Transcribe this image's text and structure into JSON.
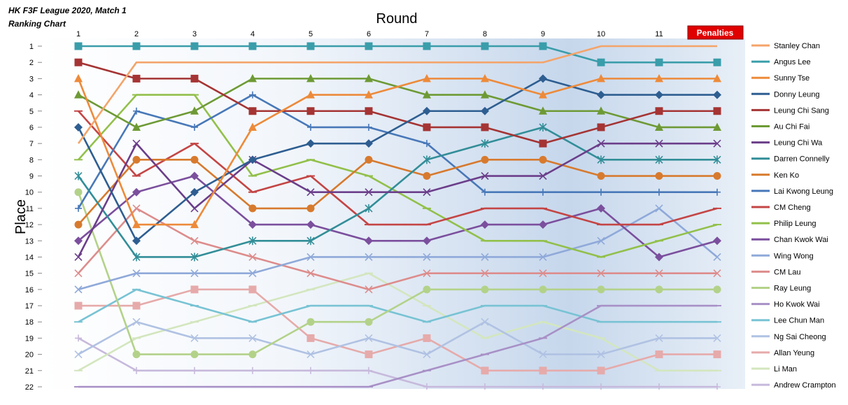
{
  "chart_data": {
    "type": "line",
    "title": "HK F3F League 2020, Match 1",
    "subtitle": "Ranking Chart",
    "xlabel": "Round",
    "ylabel": "Place",
    "x": [
      1,
      2,
      3,
      4,
      5,
      6,
      7,
      8,
      9,
      10,
      11,
      12
    ],
    "x_tick_labels": [
      "1",
      "2",
      "3",
      "4",
      "5",
      "6",
      "7",
      "8",
      "9",
      "10",
      "11",
      ""
    ],
    "ylim": [
      1,
      22
    ],
    "y_inverted": true,
    "y_ticks": [
      1,
      2,
      3,
      4,
      5,
      6,
      7,
      8,
      9,
      10,
      11,
      12,
      13,
      14,
      15,
      16,
      17,
      18,
      19,
      20,
      21,
      22
    ],
    "penalties_label": "Penalties",
    "legend_position": "right",
    "series": [
      {
        "name": "Stanley Chan",
        "color": "#F4A46A",
        "marker": "none",
        "values": [
          7,
          2,
          2,
          2,
          2,
          2,
          2,
          2,
          2,
          1,
          1,
          1
        ]
      },
      {
        "name": "Angus Lee",
        "color": "#3A9DAA",
        "marker": "square",
        "values": [
          1,
          1,
          1,
          1,
          1,
          1,
          1,
          1,
          1,
          2,
          2,
          2
        ]
      },
      {
        "name": "Sunny Tse",
        "color": "#ED8A3A",
        "marker": "triangle",
        "values": [
          3,
          12,
          12,
          6,
          4,
          4,
          3,
          3,
          4,
          3,
          3,
          3
        ]
      },
      {
        "name": "Donny Leung",
        "color": "#2E5E91",
        "marker": "diamond",
        "values": [
          6,
          13,
          10,
          8,
          7,
          7,
          5,
          5,
          3,
          4,
          4,
          4
        ]
      },
      {
        "name": "Leung Chi Sang",
        "color": "#A53434",
        "marker": "square",
        "values": [
          2,
          3,
          3,
          5,
          5,
          5,
          6,
          6,
          7,
          6,
          5,
          5
        ]
      },
      {
        "name": "Au Chi Fai",
        "color": "#6E9A35",
        "marker": "triangle",
        "values": [
          4,
          6,
          5,
          3,
          3,
          3,
          4,
          4,
          5,
          5,
          6,
          6
        ]
      },
      {
        "name": "Leung Chi Wa",
        "color": "#6B3E8A",
        "marker": "x",
        "values": [
          14,
          7,
          11,
          8,
          10,
          10,
          10,
          9,
          9,
          7,
          7,
          7
        ]
      },
      {
        "name": "Darren Connelly",
        "color": "#328E98",
        "marker": "star",
        "values": [
          9,
          14,
          14,
          13,
          13,
          11,
          8,
          7,
          6,
          8,
          8,
          8
        ]
      },
      {
        "name": "Ken Ko",
        "color": "#D77A2E",
        "marker": "circle",
        "values": [
          12,
          8,
          8,
          11,
          11,
          8,
          9,
          8,
          8,
          9,
          9,
          9
        ]
      },
      {
        "name": "Lai Kwong Leung",
        "color": "#4878B8",
        "marker": "plus",
        "values": [
          11,
          5,
          6,
          4,
          6,
          6,
          7,
          10,
          10,
          10,
          10,
          10
        ]
      },
      {
        "name": "CM Cheng",
        "color": "#C44545",
        "marker": "minus",
        "values": [
          5,
          9,
          7,
          10,
          9,
          12,
          12,
          11,
          11,
          12,
          12,
          11
        ]
      },
      {
        "name": "Philip Leung",
        "color": "#92C04A",
        "marker": "minus",
        "values": [
          8,
          4,
          4,
          9,
          8,
          9,
          11,
          13,
          13,
          14,
          13,
          12
        ]
      },
      {
        "name": "Chan Kwok Wai",
        "color": "#7B4F9D",
        "marker": "diamond",
        "values": [
          13,
          10,
          9,
          12,
          12,
          13,
          13,
          12,
          12,
          11,
          14,
          13
        ]
      },
      {
        "name": "Wing Wong",
        "color": "#8FA9D9",
        "marker": "x",
        "values": [
          16,
          15,
          15,
          15,
          14,
          14,
          14,
          14,
          14,
          13,
          11,
          14
        ]
      },
      {
        "name": "CM Lau",
        "color": "#DD8C8C",
        "marker": "x",
        "values": [
          15,
          11,
          13,
          14,
          15,
          16,
          15,
          15,
          15,
          15,
          15,
          15
        ]
      },
      {
        "name": "Ray Leung",
        "color": "#B3D289",
        "marker": "circle",
        "values": [
          10,
          20,
          20,
          20,
          18,
          18,
          16,
          16,
          16,
          16,
          16,
          16
        ]
      },
      {
        "name": "Ho Kwok Wai",
        "color": "#A890C6",
        "marker": "minus",
        "values": [
          22,
          22,
          22,
          22,
          22,
          22,
          21,
          20,
          19,
          17,
          17,
          17
        ]
      },
      {
        "name": "Lee Chun Man",
        "color": "#78C3D4",
        "marker": "minus",
        "values": [
          18,
          16,
          17,
          18,
          17,
          17,
          18,
          17,
          17,
          18,
          18,
          18
        ]
      },
      {
        "name": "Ng Sai Cheong",
        "color": "#B0C2E3",
        "marker": "x",
        "values": [
          20,
          18,
          19,
          19,
          20,
          19,
          20,
          18,
          20,
          20,
          19,
          19
        ]
      },
      {
        "name": "Allan Yeung",
        "color": "#E6AAAA",
        "marker": "square",
        "values": [
          17,
          17,
          16,
          16,
          19,
          20,
          19,
          21,
          21,
          21,
          20,
          20
        ]
      },
      {
        "name": "Li Man",
        "color": "#D3E6BE",
        "marker": "minus",
        "values": [
          21,
          19,
          18,
          17,
          16,
          15,
          17,
          19,
          18,
          19,
          21,
          21
        ]
      },
      {
        "name": "Andrew Crampton",
        "color": "#C7B9DC",
        "marker": "plus",
        "values": [
          19,
          21,
          21,
          21,
          21,
          21,
          22,
          22,
          22,
          22,
          22,
          22
        ]
      }
    ]
  }
}
